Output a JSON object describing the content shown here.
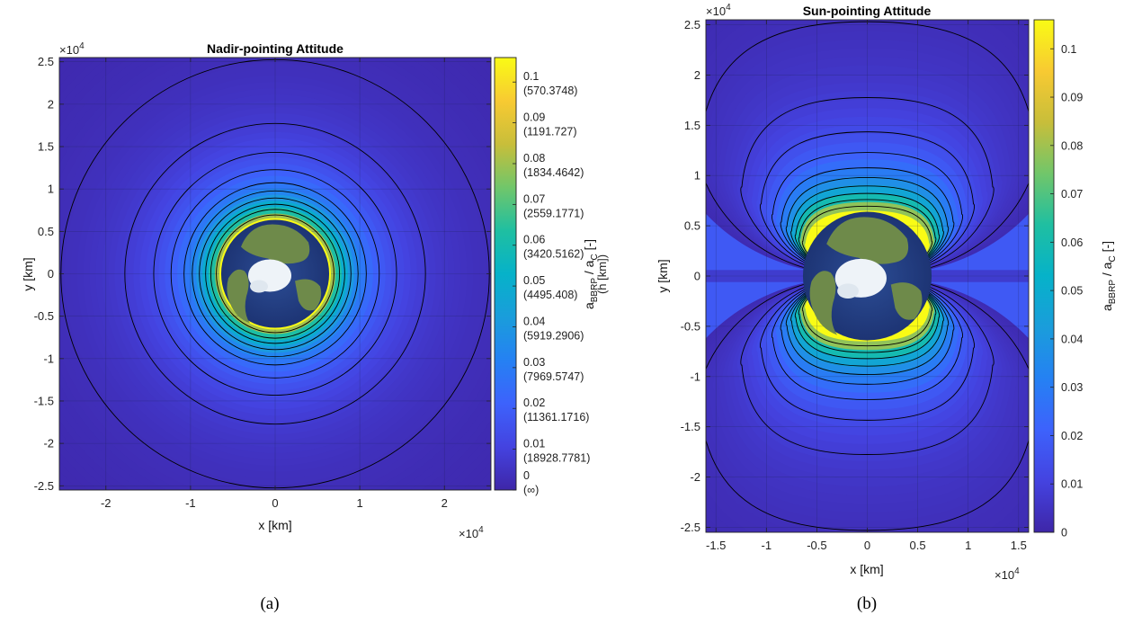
{
  "chart_data": [
    {
      "type": "heatmap",
      "title": "Nadir-pointing Attitude",
      "xlabel": "x [km]",
      "ylabel": "y [km]",
      "x_exponent": "×10^4",
      "y_exponent": "×10^4",
      "xlim": [
        -2.55,
        2.55
      ],
      "ylim": [
        -2.55,
        2.55
      ],
      "x_ticks": [
        -2,
        -1,
        0,
        1,
        2
      ],
      "y_ticks": [
        -2.5,
        -2,
        -1.5,
        -1,
        -0.5,
        0,
        0.5,
        1,
        1.5,
        2,
        2.5
      ],
      "grid": true,
      "earth_radius": 0.6378,
      "contour_radii": [
        0.695,
        0.761,
        0.822,
        0.896,
        0.98,
        1.077,
        1.23,
        1.435,
        1.776,
        2.531
      ],
      "colorbar": {
        "label": "a_BBRP / a_C [-]",
        "label_main": "a",
        "label_sub1": "BBRP",
        "label_mid": " / a",
        "label_sub2": "C",
        "label_end": " [-]",
        "label_line2": "(h [km])",
        "min": 0,
        "max": 0.106,
        "ticks": [
          0,
          0.01,
          0.02,
          0.03,
          0.04,
          0.05,
          0.06,
          0.07,
          0.08,
          0.09,
          0.1
        ],
        "tick_labels": [
          "0",
          "0.01",
          "0.02",
          "0.03",
          "0.04",
          "0.05",
          "0.06",
          "0.07",
          "0.08",
          "0.09",
          "0.1"
        ],
        "tick_sublabels": [
          "(∞)",
          "(18928.7781)",
          "(11361.1716)",
          "(7969.5747)",
          "(5919.2906)",
          "(4495.408)",
          "(3420.5162)",
          "(2559.1771)",
          "(1834.4642)",
          "(1191.727)",
          "(570.3748)"
        ]
      },
      "caption": "(a)"
    },
    {
      "type": "heatmap",
      "title": "Sun-pointing Attitude",
      "xlabel": "x [km]",
      "ylabel": "y [km]",
      "x_exponent": "×10^4",
      "y_exponent": "×10^4",
      "xlim": [
        -1.6,
        1.6
      ],
      "ylim": [
        -2.55,
        2.55
      ],
      "x_ticks": [
        -1.5,
        -1,
        -0.5,
        0,
        0.5,
        1,
        1.5
      ],
      "y_ticks": [
        -2.5,
        -2,
        -1.5,
        -1,
        -0.5,
        0,
        0.5,
        1,
        1.5,
        2,
        2.5
      ],
      "grid": true,
      "earth_radius": 0.6378,
      "contour_top_y": [
        0.695,
        0.761,
        0.822,
        0.896,
        0.98,
        1.077,
        1.23,
        1.435,
        1.776,
        2.531
      ],
      "colorbar": {
        "label": "a_BBRP / a_C [-]",
        "label_main": "a",
        "label_sub1": "BBRP",
        "label_mid": " / a",
        "label_sub2": "C",
        "label_end": " [-]",
        "min": 0,
        "max": 0.106,
        "ticks": [
          0,
          0.01,
          0.02,
          0.03,
          0.04,
          0.05,
          0.06,
          0.07,
          0.08,
          0.09,
          0.1
        ],
        "tick_labels": [
          "0",
          "0.01",
          "0.02",
          "0.03",
          "0.04",
          "0.05",
          "0.06",
          "0.07",
          "0.08",
          "0.09",
          "0.1"
        ]
      },
      "caption": "(b)"
    }
  ]
}
